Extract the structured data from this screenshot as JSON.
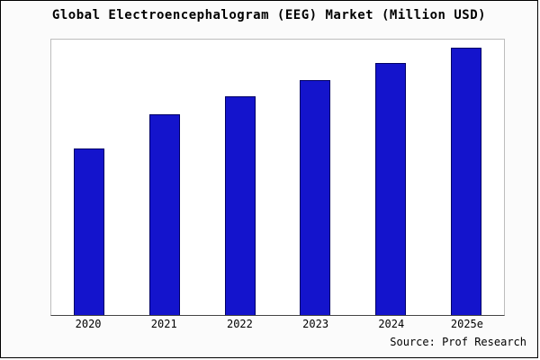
{
  "title": "Global Electroencephalogram (EEG) Market (Million USD)",
  "source": "Source: Prof Research",
  "colors": {
    "bar": "#1414CC",
    "bar_border": "#000066",
    "plot_border": "#bdbdbd",
    "axis": "#444444",
    "background": "#fbfbfb"
  },
  "chart_data": {
    "type": "bar",
    "title": "Global Electroencephalogram (EEG) Market (Million USD)",
    "categories": [
      "2020",
      "2021",
      "2022",
      "2023",
      "2024",
      "2025e"
    ],
    "values": [
      100,
      120,
      131,
      141,
      151,
      160
    ],
    "xlabel": "",
    "ylabel": "",
    "ylim": [
      0,
      165
    ],
    "grid": false,
    "legend": false,
    "y_axis_labels_shown": false,
    "note": "No y-axis tick labels are visible in the chart; values are estimated from relative bar heights."
  }
}
